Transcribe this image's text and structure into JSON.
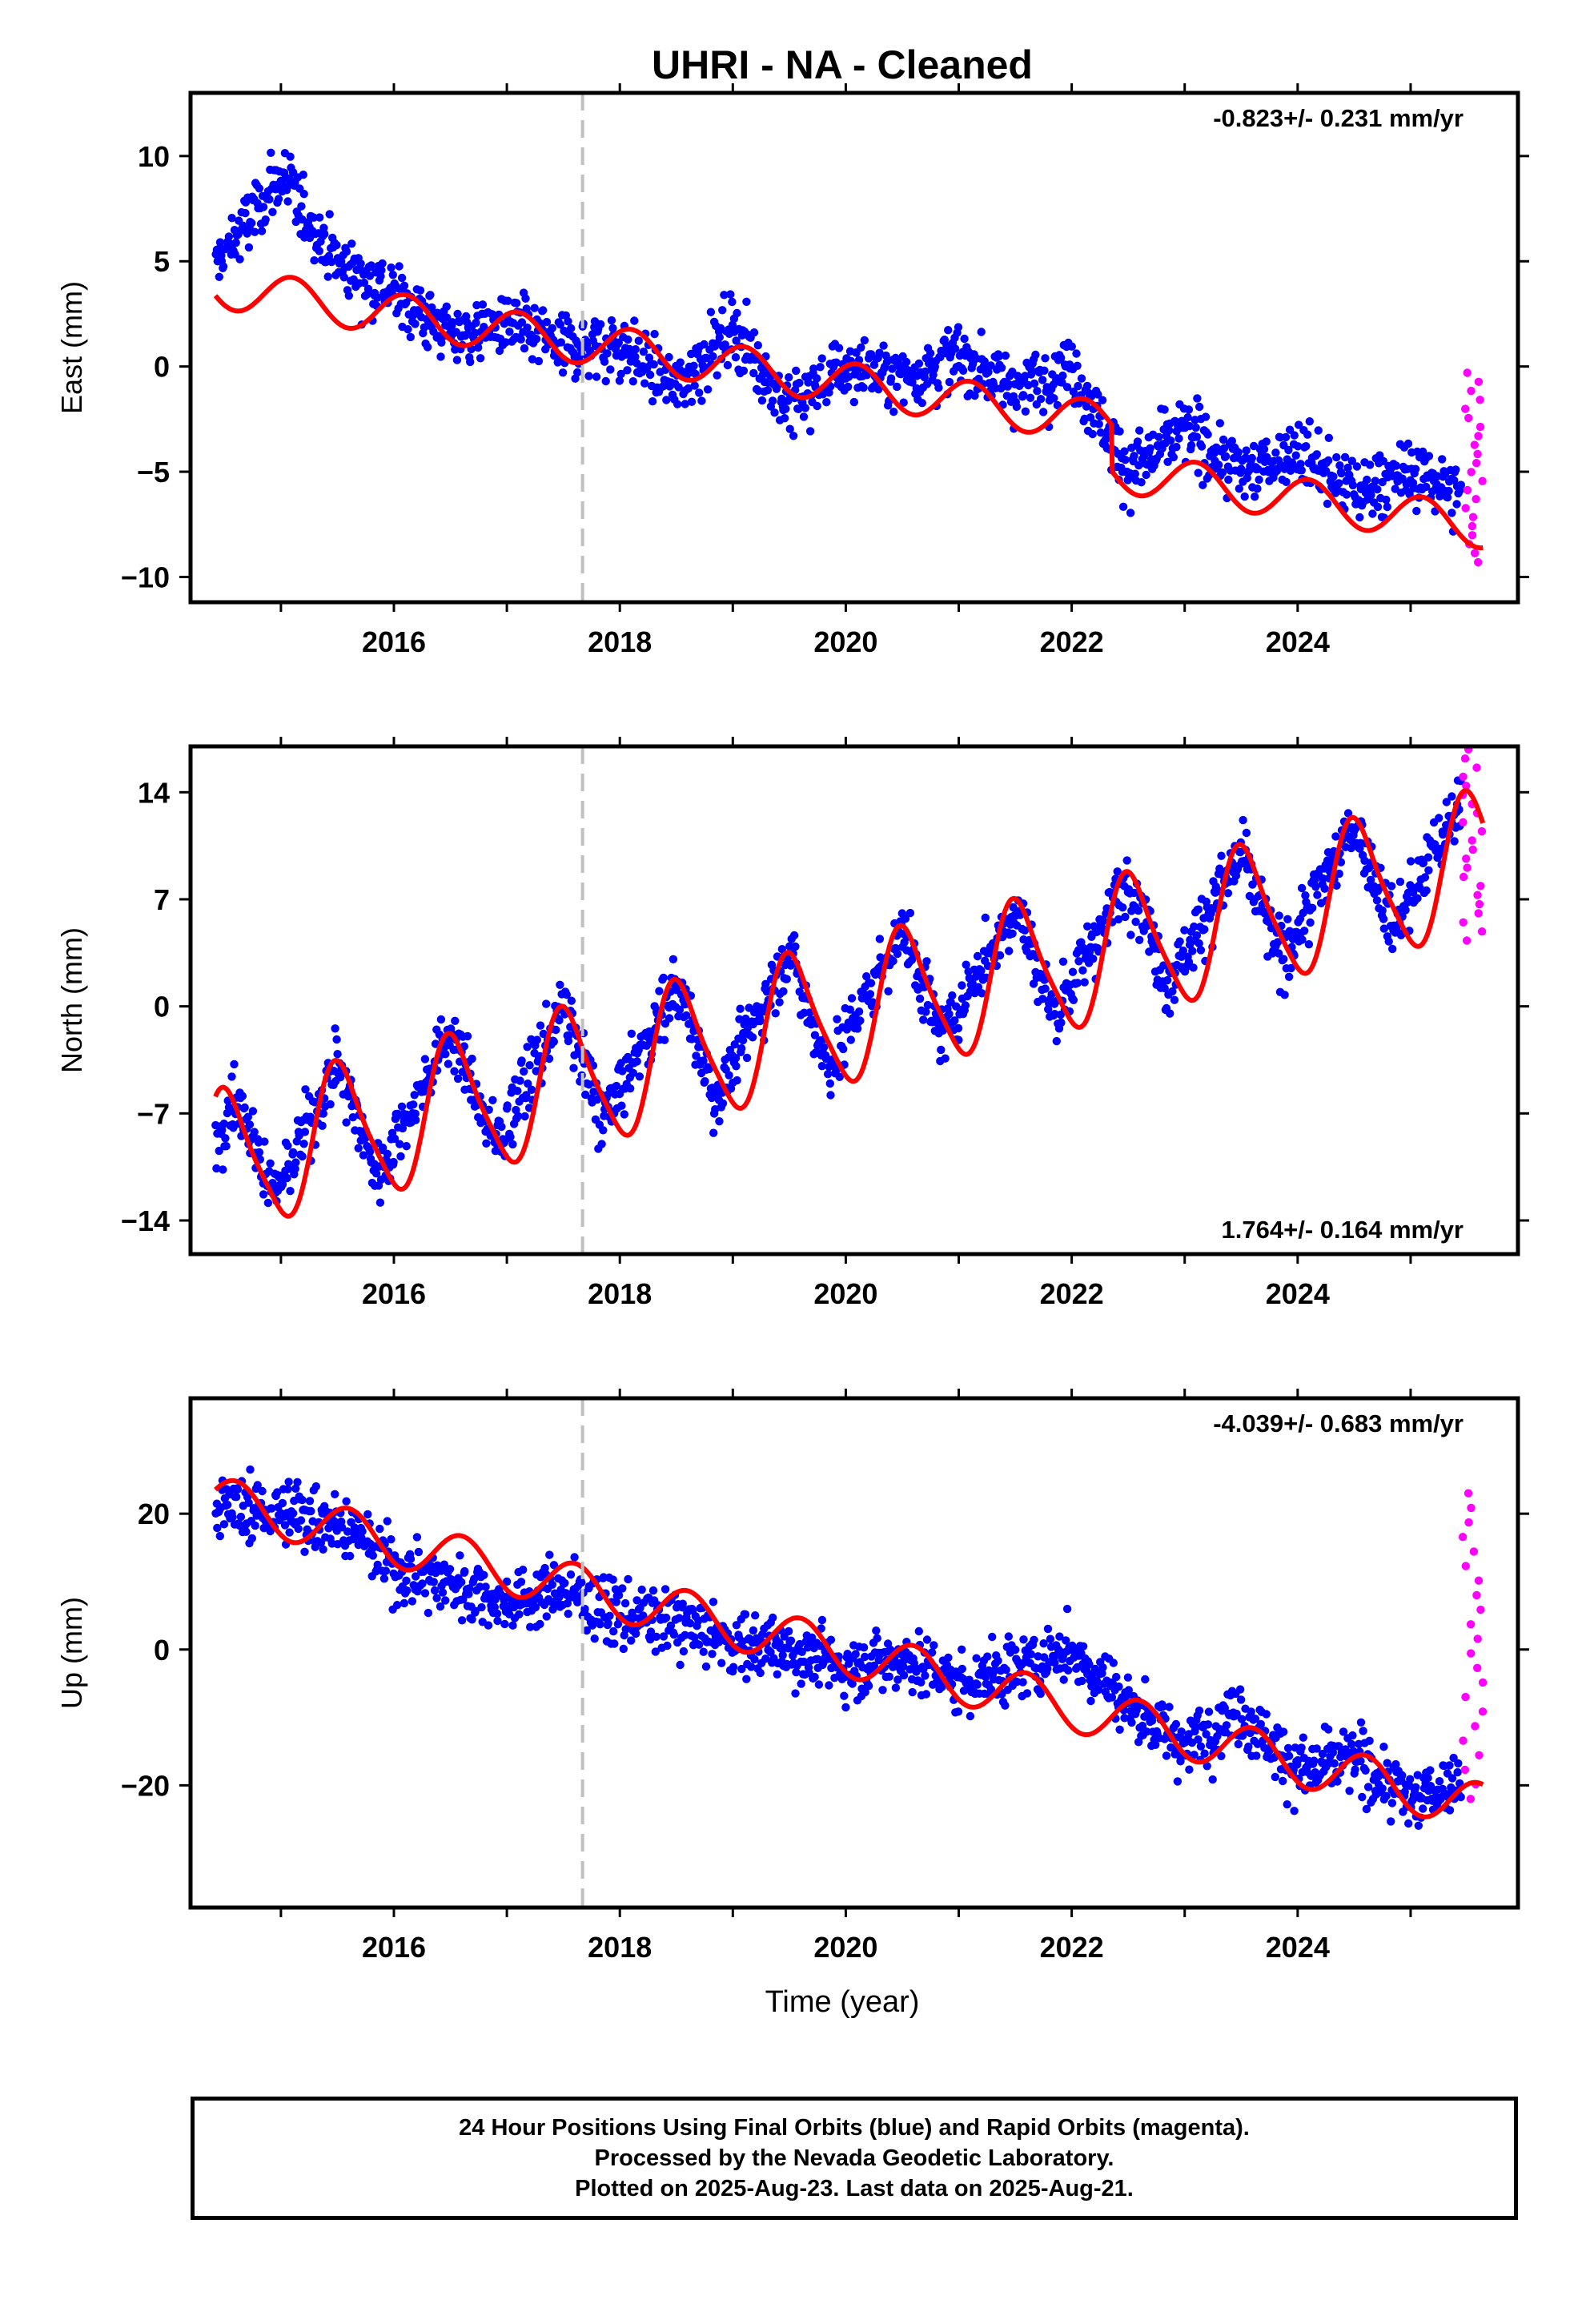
{
  "title": "UHRI  - NA - Cleaned",
  "xlabel": "Time (year)",
  "footer": {
    "line1": "24 Hour Positions Using Final Orbits (blue) and Rapid Orbits (magenta).",
    "line2": "Processed by the Nevada Geodetic Laboratory.",
    "line3": "Plotted on 2025-Aug-23. Last data on 2025-Aug-21."
  },
  "colors": {
    "final_orbits": "#0000ff",
    "rapid_orbits": "#ff00ff",
    "model": "#ff0000",
    "equipment_change": "#c0c0c0"
  },
  "chart_data": [
    {
      "type": "scatter",
      "ylabel": "East (mm)",
      "rate_label": "-0.823+/- 0.231 mm/yr",
      "rate_position": "top-right",
      "xlim": [
        2014.2,
        2025.95
      ],
      "ylim": [
        -11.2,
        13.0
      ],
      "yticks": [
        -10,
        -5,
        0,
        5,
        10
      ],
      "xticks": [
        2016,
        2018,
        2020,
        2022,
        2024
      ],
      "equipment_change_x": 2017.67,
      "model": {
        "intercept_at_2020": -0.8,
        "rate": -0.823,
        "annual_amplitude": 1.0,
        "annual_peak_x": 0.1,
        "offsets": [
          {
            "x": 2022.35,
            "dy": -2.2
          }
        ]
      },
      "final_orbits": {
        "x_range": [
          2014.42,
          2025.45
        ],
        "points": [
          {
            "x": 2014.42,
            "y": 4.8
          },
          {
            "x": 2015.0,
            "y": 9.0
          },
          {
            "x": 2015.5,
            "y": 5.0
          },
          {
            "x": 2016.0,
            "y": 3.5
          },
          {
            "x": 2016.5,
            "y": 1.5
          },
          {
            "x": 2017.0,
            "y": 2.0
          },
          {
            "x": 2017.5,
            "y": 1.0
          },
          {
            "x": 2018.0,
            "y": 1.0
          },
          {
            "x": 2018.5,
            "y": -1.0
          },
          {
            "x": 2019.0,
            "y": 2.0
          },
          {
            "x": 2019.5,
            "y": -2.0
          },
          {
            "x": 2020.0,
            "y": 0.0
          },
          {
            "x": 2020.5,
            "y": -0.5
          },
          {
            "x": 2021.0,
            "y": 0.5
          },
          {
            "x": 2021.5,
            "y": -1.0
          },
          {
            "x": 2022.0,
            "y": 0.0
          },
          {
            "x": 2022.5,
            "y": -5.0
          },
          {
            "x": 2023.0,
            "y": -3.0
          },
          {
            "x": 2023.5,
            "y": -5.0
          },
          {
            "x": 2024.0,
            "y": -4.0
          },
          {
            "x": 2024.5,
            "y": -6.0
          },
          {
            "x": 2025.0,
            "y": -5.0
          },
          {
            "x": 2025.45,
            "y": -6.0
          }
        ]
      },
      "rapid_orbits": {
        "x_range": [
          2025.46,
          2025.64
        ],
        "y_range": [
          -9.3,
          -0.3
        ]
      }
    },
    {
      "type": "scatter",
      "ylabel": "North (mm)",
      "rate_label": "1.764+/- 0.164 mm/yr",
      "rate_position": "bottom-right",
      "xlim": [
        2014.2,
        2025.95
      ],
      "ylim": [
        -16.2,
        17.0
      ],
      "yticks": [
        -14,
        -7,
        0,
        7,
        14
      ],
      "xticks": [
        2016,
        2018,
        2020,
        2022,
        2024
      ],
      "equipment_change_x": 2017.67,
      "model": {
        "intercept_at_2020": -0.5,
        "rate": 1.764,
        "annual_amplitude": 4.5,
        "annual_peak_x": 0.52,
        "semiannual_amplitude": 0.8,
        "semiannual_peak_x": 0.42
      },
      "final_orbits": {
        "x_range": [
          2014.42,
          2025.45
        ],
        "points": [
          {
            "x": 2014.42,
            "y": -10.0
          },
          {
            "x": 2014.6,
            "y": -5.5
          },
          {
            "x": 2014.95,
            "y": -12.5
          },
          {
            "x": 2015.5,
            "y": -3.5
          },
          {
            "x": 2015.85,
            "y": -11.0
          },
          {
            "x": 2016.5,
            "y": -1.5
          },
          {
            "x": 2016.9,
            "y": -9.0
          },
          {
            "x": 2017.5,
            "y": 0.0
          },
          {
            "x": 2017.85,
            "y": -7.5
          },
          {
            "x": 2018.5,
            "y": 1.5
          },
          {
            "x": 2018.85,
            "y": -6.0
          },
          {
            "x": 2019.5,
            "y": 3.5
          },
          {
            "x": 2019.85,
            "y": -4.0
          },
          {
            "x": 2020.5,
            "y": 5.0
          },
          {
            "x": 2020.85,
            "y": -2.0
          },
          {
            "x": 2021.5,
            "y": 6.5
          },
          {
            "x": 2021.85,
            "y": -0.5
          },
          {
            "x": 2022.5,
            "y": 8.5
          },
          {
            "x": 2022.85,
            "y": 1.5
          },
          {
            "x": 2023.5,
            "y": 10.0
          },
          {
            "x": 2023.85,
            "y": 3.0
          },
          {
            "x": 2024.5,
            "y": 12.0
          },
          {
            "x": 2024.85,
            "y": 5.0
          },
          {
            "x": 2025.45,
            "y": 13.5
          }
        ]
      },
      "rapid_orbits": {
        "x_range": [
          2025.46,
          2025.64
        ],
        "y_range": [
          4.3,
          16.8
        ]
      }
    },
    {
      "type": "scatter",
      "ylabel": "Up (mm)",
      "rate_label": "-4.039+/- 0.683 mm/yr",
      "rate_position": "top-right",
      "xlim": [
        2014.2,
        2025.95
      ],
      "ylim": [
        -38.0,
        37.0
      ],
      "yticks": [
        -20,
        0,
        20
      ],
      "xticks": [
        2016,
        2018,
        2020,
        2022,
        2024
      ],
      "equipment_change_x": 2017.67,
      "model": {
        "intercept_at_2020": -0.5,
        "rate": -4.039,
        "annual_amplitude": 3.5,
        "annual_peak_x": 0.6
      },
      "final_orbits": {
        "x_range": [
          2014.42,
          2025.45
        ],
        "points": [
          {
            "x": 2014.42,
            "y": 21.0
          },
          {
            "x": 2015.0,
            "y": 20.0
          },
          {
            "x": 2015.5,
            "y": 19.0
          },
          {
            "x": 2016.0,
            "y": 12.0
          },
          {
            "x": 2016.5,
            "y": 10.0
          },
          {
            "x": 2017.0,
            "y": 7.0
          },
          {
            "x": 2017.5,
            "y": 9.0
          },
          {
            "x": 2018.0,
            "y": 5.0
          },
          {
            "x": 2018.5,
            "y": 4.0
          },
          {
            "x": 2019.0,
            "y": 1.0
          },
          {
            "x": 2019.5,
            "y": 0.0
          },
          {
            "x": 2020.0,
            "y": -3.0
          },
          {
            "x": 2020.5,
            "y": -1.0
          },
          {
            "x": 2021.0,
            "y": -5.0
          },
          {
            "x": 2021.5,
            "y": -3.0
          },
          {
            "x": 2022.0,
            "y": 0.0
          },
          {
            "x": 2022.5,
            "y": -8.0
          },
          {
            "x": 2023.0,
            "y": -14.0
          },
          {
            "x": 2023.5,
            "y": -9.0
          },
          {
            "x": 2024.0,
            "y": -18.0
          },
          {
            "x": 2024.5,
            "y": -16.0
          },
          {
            "x": 2025.0,
            "y": -22.0
          },
          {
            "x": 2025.45,
            "y": -19.0
          }
        ]
      },
      "rapid_orbits": {
        "x_range": [
          2025.46,
          2025.64
        ],
        "y_range": [
          -22.0,
          23.0
        ]
      }
    }
  ]
}
